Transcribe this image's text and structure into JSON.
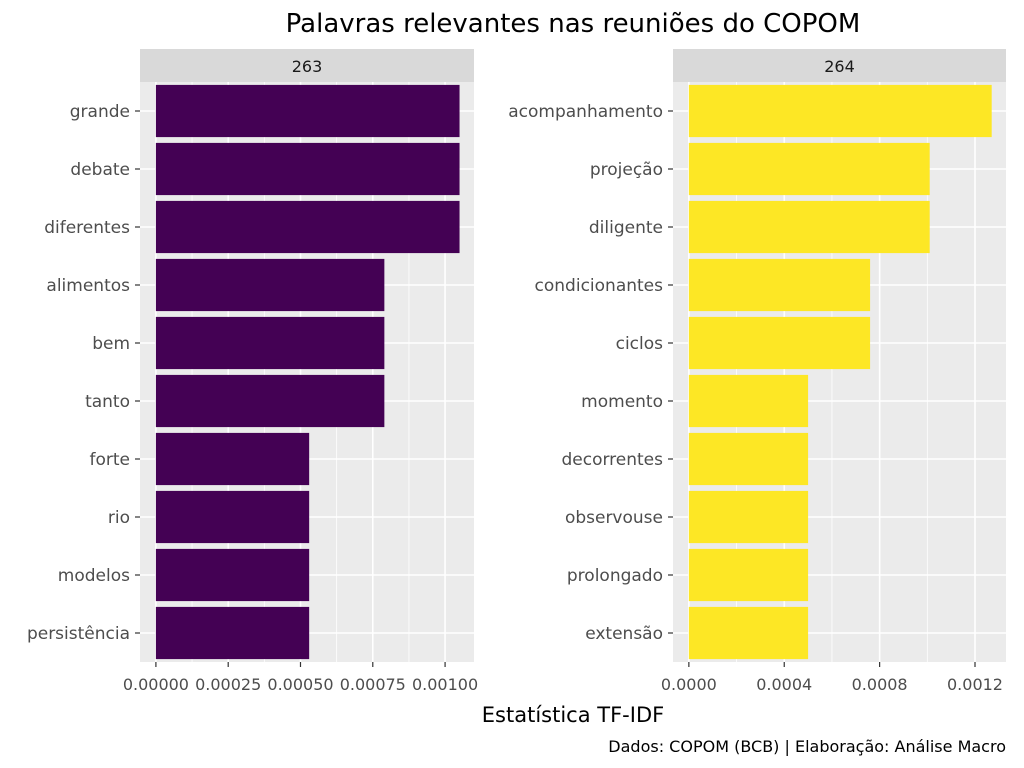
{
  "chart_data": {
    "type": "bar",
    "orientation": "horizontal",
    "title": "Palavras relevantes nas reuniões do COPOM",
    "xlabel": "Estatística TF-IDF",
    "caption": "Dados: COPOM (BCB) | Elaboração: Análise Macro",
    "grid": true,
    "legend": "none",
    "colors": {
      "panel_bg": "#ebebeb",
      "strip_bg": "#d9d9d9",
      "grid": "#ffffff"
    },
    "panels": [
      {
        "strip": "263",
        "color": "#440154",
        "xlim": [
          0,
          0.0011
        ],
        "ticks": [
          0,
          0.00025,
          0.0005,
          0.00075,
          0.001
        ],
        "tick_labels": [
          "0.00000",
          "0.00025",
          "0.00050",
          "0.00075",
          "0.00100"
        ],
        "categories": [
          "grande",
          "debate",
          "diferentes",
          "alimentos",
          "bem",
          "tanto",
          "forte",
          "rio",
          "modelos",
          "persistência"
        ],
        "values": [
          0.00105,
          0.00105,
          0.00105,
          0.00079,
          0.00079,
          0.00079,
          0.00053,
          0.00053,
          0.00053,
          0.00053
        ]
      },
      {
        "strip": "264",
        "color": "#fde725",
        "xlim": [
          0,
          0.00133
        ],
        "ticks": [
          0,
          0.0004,
          0.0008,
          0.0012
        ],
        "tick_labels": [
          "0.0000",
          "0.0004",
          "0.0008",
          "0.0012"
        ],
        "categories": [
          "acompanhamento",
          "projeção",
          "diligente",
          "condicionantes",
          "ciclos",
          "momento",
          "decorrentes",
          "observouse",
          "prolongado",
          "extensão"
        ],
        "values": [
          0.00127,
          0.00101,
          0.00101,
          0.00076,
          0.00076,
          0.0005,
          0.0005,
          0.0005,
          0.0005,
          0.0005
        ]
      }
    ]
  }
}
